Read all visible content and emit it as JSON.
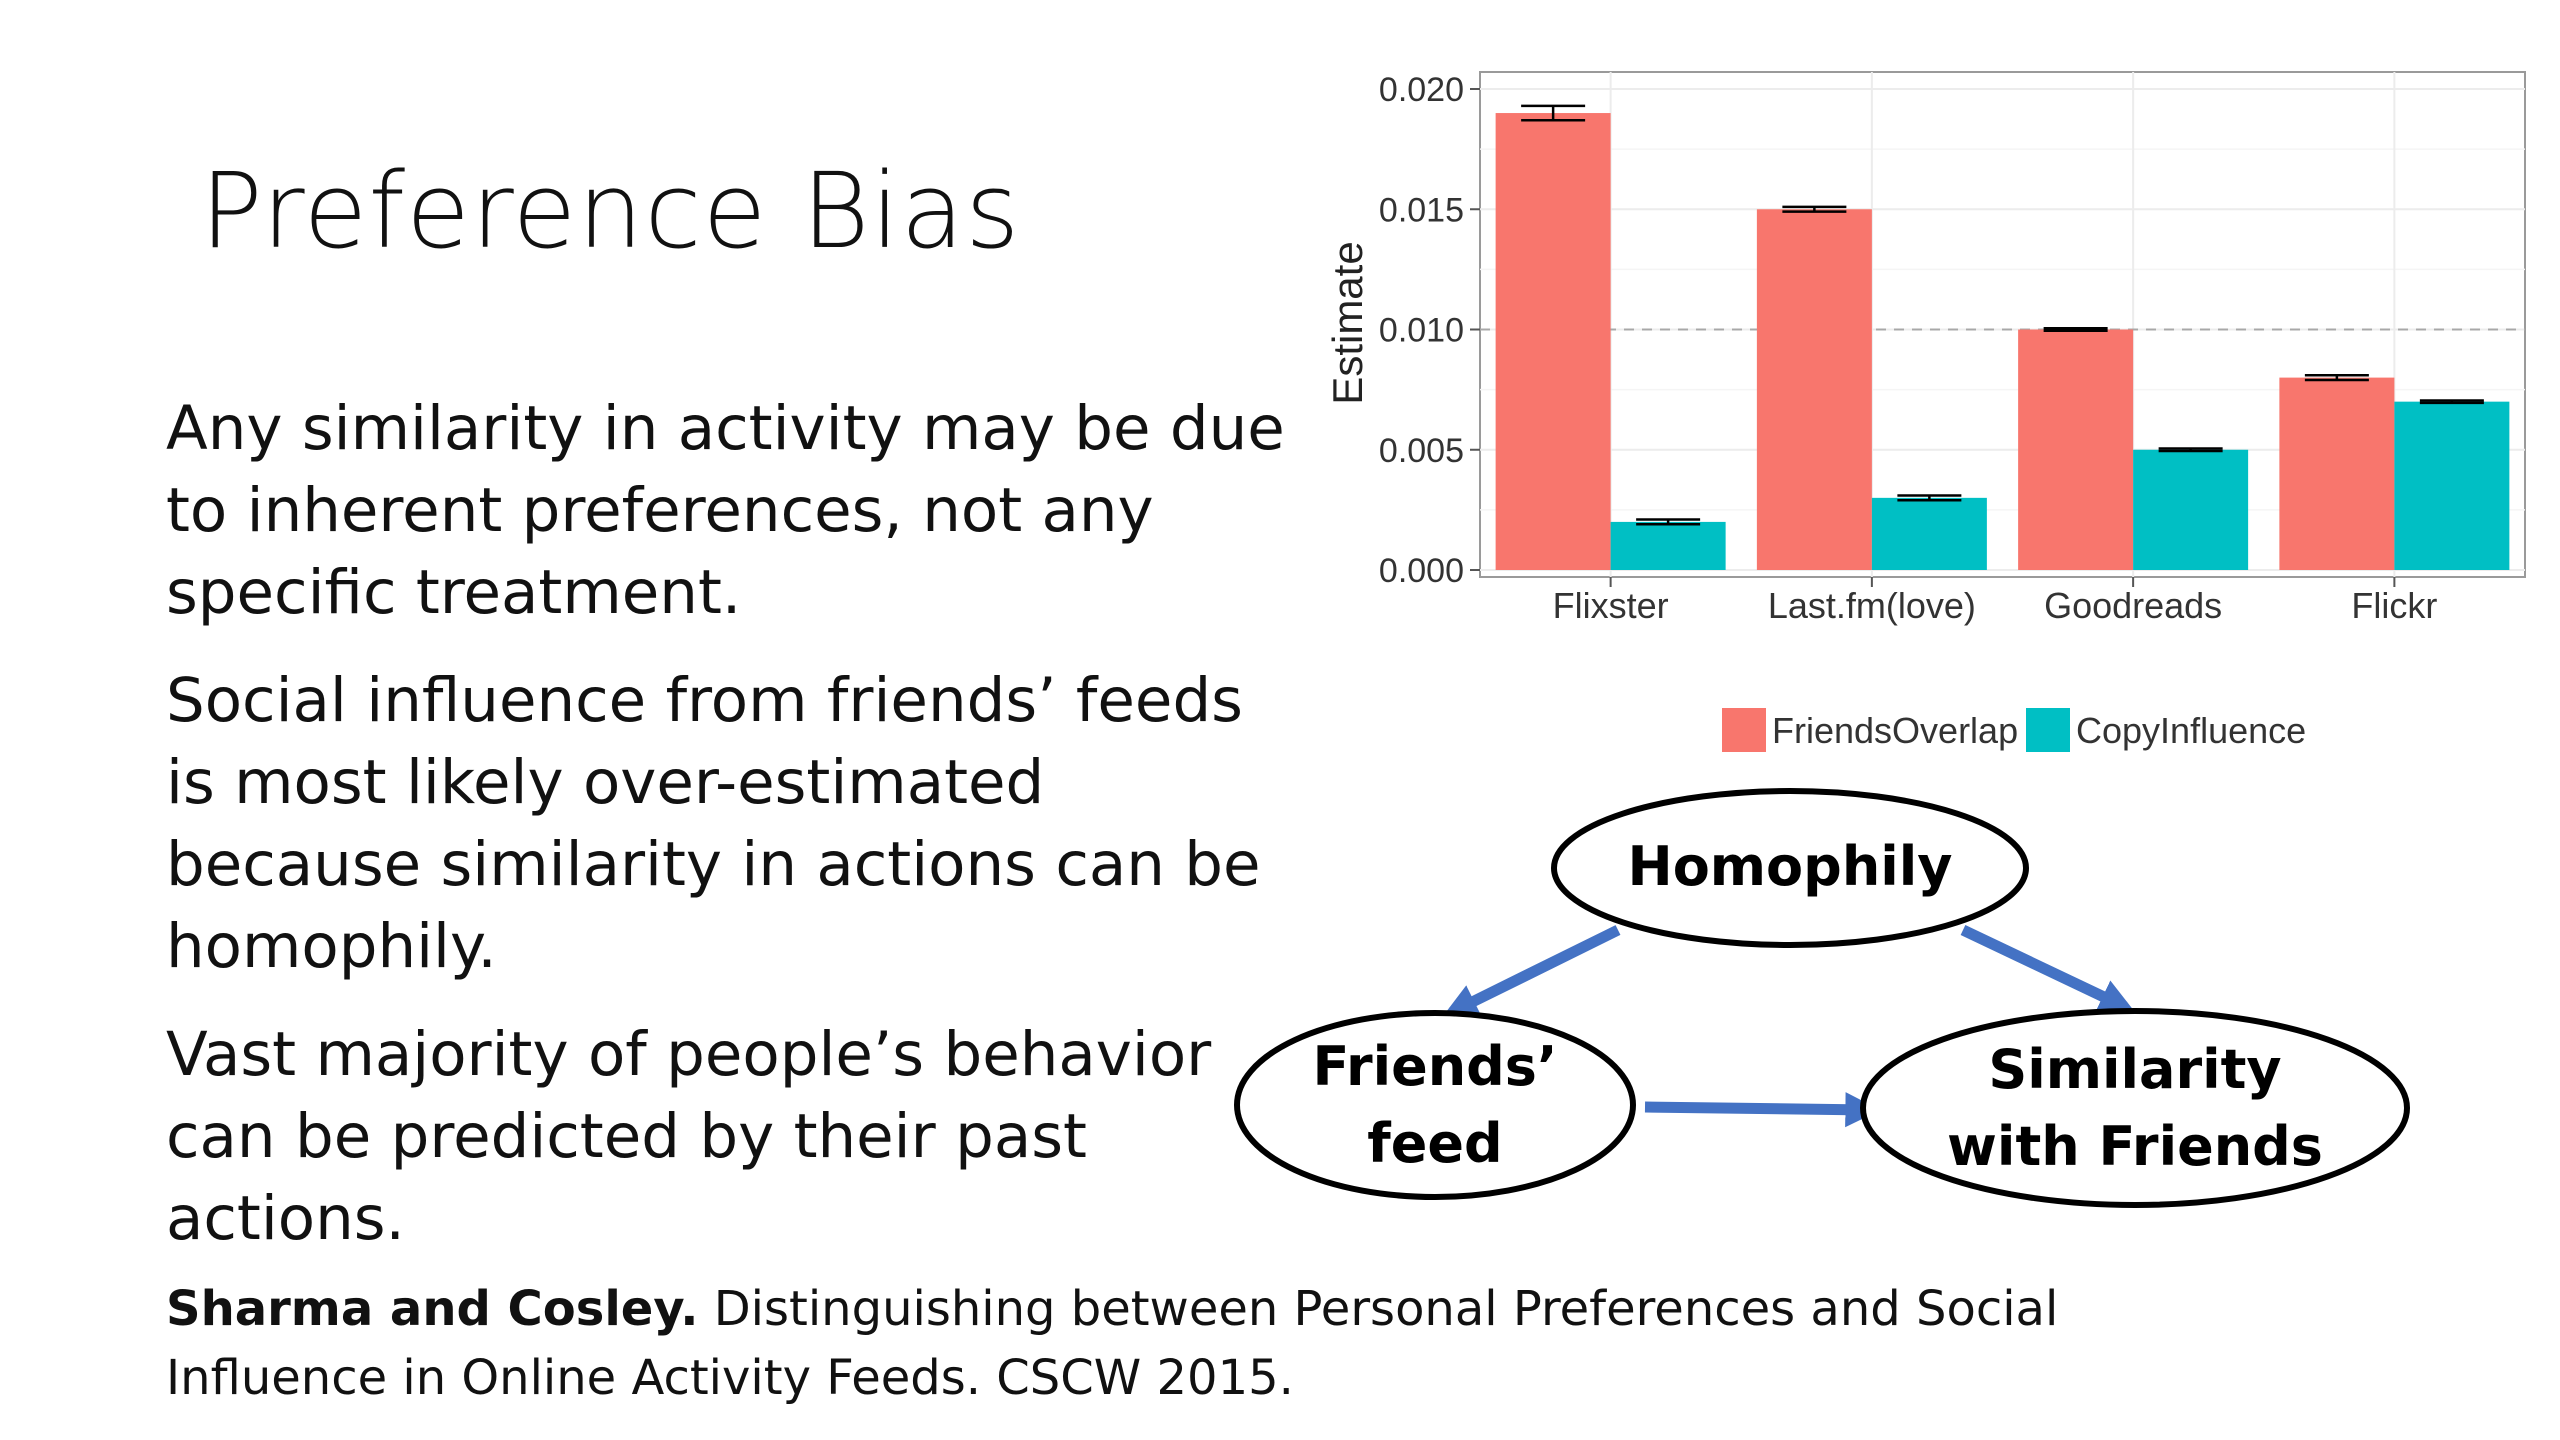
{
  "slide": {
    "title": "Preference Bias",
    "bullets": [
      "Any similarity in activity may be due to inherent preferences, not any specific treatment.",
      "Social influence from friends’ feeds is most likely over-estimated because similarity in actions can be homophily.",
      "Vast majority of people’s behavior can be predicted by their past actions."
    ],
    "citation": {
      "authors": "Sharma and Cosley.",
      "text": " Distinguishing between Personal Preferences and Social Influence in Online Activity Feeds. CSCW 2015."
    }
  },
  "chart_data": {
    "type": "bar",
    "ylabel": "Estimate",
    "xlabel": "",
    "ylim": [
      0,
      0.02
    ],
    "yticks": [
      "0.000",
      "0.005",
      "0.010",
      "0.015",
      "0.020"
    ],
    "ytick_values": [
      0,
      0.005,
      0.01,
      0.015,
      0.02
    ],
    "reference_line": 0.01,
    "categories": [
      "Flixster",
      "Last.fm(love)",
      "Goodreads",
      "Flickr"
    ],
    "series": [
      {
        "name": "FriendsOverlap",
        "color": "#F8766D",
        "values": [
          0.019,
          0.015,
          0.01,
          0.008
        ],
        "errors": [
          0.0003,
          0.0001,
          5e-05,
          0.0001
        ]
      },
      {
        "name": "CopyInfluence",
        "color": "#00BFC4",
        "values": [
          0.002,
          0.003,
          0.005,
          0.007
        ],
        "errors": [
          0.0001,
          0.0001,
          5e-05,
          5e-05
        ]
      }
    ],
    "grid": true,
    "legend_position": "bottom"
  },
  "diagram": {
    "nodes": {
      "homophily": "Homophily",
      "friends_feed": [
        "Friends’",
        "feed"
      ],
      "similarity": [
        "Similarity",
        "with Friends"
      ]
    },
    "edge_color": "#4472C4"
  }
}
